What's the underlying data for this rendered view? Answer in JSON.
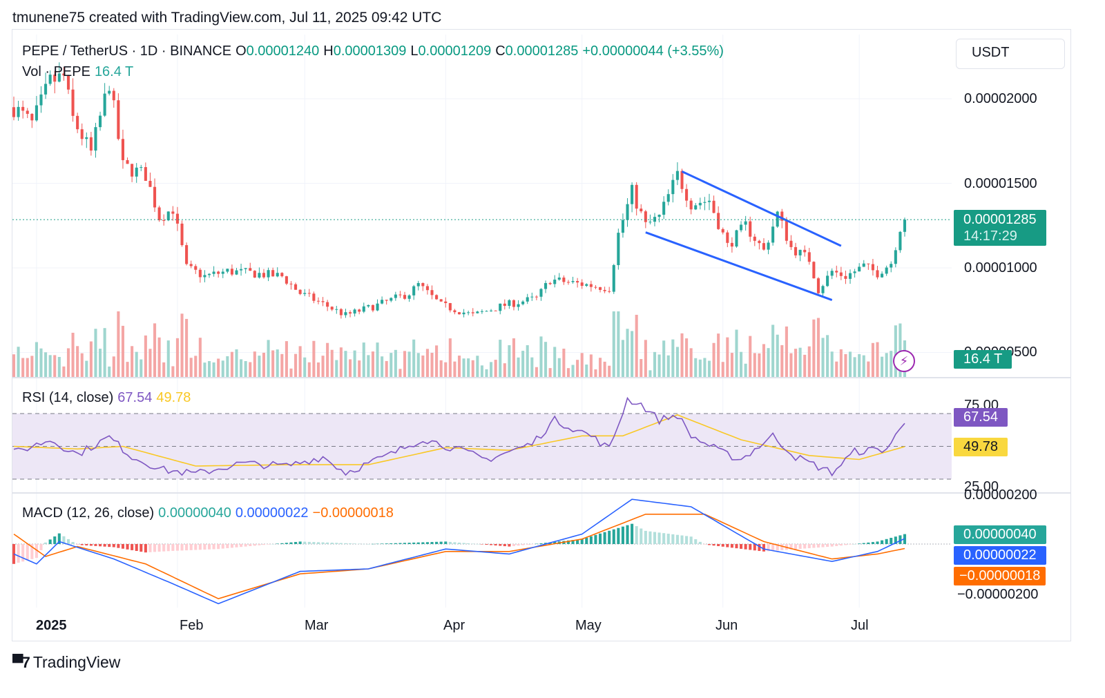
{
  "credit": "tmunene75 created with TradingView.com, Jul 11, 2025 09:42 UTC",
  "brand": "TradingView",
  "brand_mark_icon": "tradingview-logo-icon",
  "currency_button": "USDT",
  "legend": {
    "symbol": "PEPE / TetherUS · 1D · BINANCE",
    "open_label": "O",
    "open": "0.00001240",
    "high_label": "H",
    "high": "0.00001309",
    "low_label": "L",
    "low": "0.00001209",
    "close_label": "C",
    "close": "0.00001285",
    "change": "+0.00000044 (+3.55%)",
    "vol_label": "Vol · PEPE",
    "vol_value": "16.4 T",
    "rsi_label": "RSI (14, close)",
    "rsi_value": "67.54",
    "rsi_ma_value": "49.78",
    "macd_label": "MACD (12, 26, close)",
    "macd_hist": "0.00000040",
    "macd_line": "0.00000022",
    "macd_signal": "−0.00000018"
  },
  "price_tag": {
    "price": "0.00001285",
    "countdown": "14:17:29"
  },
  "volume_tag": "16.4 T",
  "rsi_tags": {
    "rsi": "67.54",
    "ma": "49.78"
  },
  "macd_tags": {
    "hist": "0.00000040",
    "line": "0.00000022",
    "signal": "−0.00000018"
  },
  "axis": {
    "price_ticks": [
      "0.00002000",
      "0.00001500",
      "0.00001000",
      "0.00000500"
    ],
    "rsi_ticks": [
      "75.00",
      "25.00"
    ],
    "macd_ticks": [
      "0.00000200",
      "−0.00000200"
    ],
    "months": [
      "2025",
      "Feb",
      "Mar",
      "Apr",
      "May",
      "Jun",
      "Jul"
    ]
  },
  "colors": {
    "up": "#26a69a",
    "down": "#ef5350",
    "vol_up": "#9fd6cf",
    "vol_down": "#f4a6a5",
    "rsi": "#7e57c2",
    "rsi_ma": "#f9c825",
    "rsi_band": "#ede7f6",
    "macd_line": "#2962ff",
    "macd_signal": "#ff6d00",
    "hist_up": "#26a69a",
    "hist_up_weak": "#b2dfdb",
    "hist_down": "#ef5350",
    "hist_down_weak": "#ffcdd2",
    "channel": "#2962ff",
    "price_tag": "#179b84"
  },
  "chart_data": {
    "type": "candlestick",
    "title": "PEPE / TetherUS · 1D · BINANCE",
    "price_ticks": [
      5e-06,
      1e-05,
      1.5e-05,
      2e-05
    ],
    "last_price": 1.285e-05,
    "x_start": "2024-12-27",
    "x_end": "2025-07-11",
    "price_anchors": [
      [
        "2024-12-27",
        1.95e-05
      ],
      [
        "2024-12-31",
        1.85e-05
      ],
      [
        "2025-01-04",
        2.1e-05
      ],
      [
        "2025-01-07",
        2.13e-05
      ],
      [
        "2025-01-09",
        1.88e-05
      ],
      [
        "2025-01-13",
        1.68e-05
      ],
      [
        "2025-01-17",
        2.1e-05
      ],
      [
        "2025-01-20",
        1.6e-05
      ],
      [
        "2025-01-25",
        1.55e-05
      ],
      [
        "2025-01-28",
        1.3e-05
      ],
      [
        "2025-01-31",
        1.35e-05
      ],
      [
        "2025-02-03",
        1e-05
      ],
      [
        "2025-02-07",
        9.5e-06
      ],
      [
        "2025-02-12",
        9.8e-06
      ],
      [
        "2025-02-17",
        9.7e-06
      ],
      [
        "2025-02-24",
        9.5e-06
      ],
      [
        "2025-02-28",
        8.5e-06
      ],
      [
        "2025-03-04",
        8e-06
      ],
      [
        "2025-03-10",
        7.2e-06
      ],
      [
        "2025-03-17",
        7.8e-06
      ],
      [
        "2025-03-24",
        8.5e-06
      ],
      [
        "2025-03-26",
        9e-06
      ],
      [
        "2025-03-31",
        7.8e-06
      ],
      [
        "2025-04-07",
        7.2e-06
      ],
      [
        "2025-04-14",
        7.8e-06
      ],
      [
        "2025-04-21",
        8.2e-06
      ],
      [
        "2025-04-24",
        9.3e-06
      ],
      [
        "2025-05-02",
        9e-06
      ],
      [
        "2025-05-07",
        8.8e-06
      ],
      [
        "2025-05-09",
        1.2e-05
      ],
      [
        "2025-05-12",
        1.45e-05
      ],
      [
        "2025-05-15",
        1.25e-05
      ],
      [
        "2025-05-18",
        1.3e-05
      ],
      [
        "2025-05-22",
        1.55e-05
      ],
      [
        "2025-05-25",
        1.38e-05
      ],
      [
        "2025-05-29",
        1.4e-05
      ],
      [
        "2025-06-02",
        1.13e-05
      ],
      [
        "2025-06-06",
        1.25e-05
      ],
      [
        "2025-06-10",
        1.1e-05
      ],
      [
        "2025-06-13",
        1.32e-05
      ],
      [
        "2025-06-16",
        1.12e-05
      ],
      [
        "2025-06-20",
        1.05e-05
      ],
      [
        "2025-06-22",
        8.7e-06
      ],
      [
        "2025-06-25",
        9.8e-06
      ],
      [
        "2025-06-28",
        9.5e-06
      ],
      [
        "2025-07-02",
        1.01e-05
      ],
      [
        "2025-07-05",
        9.7e-06
      ],
      [
        "2025-07-08",
        1.03e-05
      ],
      [
        "2025-07-10",
        1.24e-05
      ],
      [
        "2025-07-11",
        1.285e-05
      ]
    ],
    "falling_channel": {
      "upper": [
        [
          "2025-05-23",
          1.57e-05
        ],
        [
          "2025-06-27",
          1.13e-05
        ]
      ],
      "lower": [
        [
          "2025-05-15",
          1.21e-05
        ],
        [
          "2025-06-25",
          8.1e-06
        ]
      ]
    },
    "volume_last": "16.4 T",
    "rsi": {
      "ticks": [
        25,
        75
      ],
      "last": 67.54,
      "ma_last": 49.78,
      "anchors": [
        [
          "2024-12-27",
          45
        ],
        [
          "2025-01-04",
          55
        ],
        [
          "2025-01-10",
          44
        ],
        [
          "2025-01-17",
          57
        ],
        [
          "2025-01-22",
          42
        ],
        [
          "2025-01-29",
          32
        ],
        [
          "2025-02-05",
          29
        ],
        [
          "2025-02-15",
          37
        ],
        [
          "2025-02-25",
          35
        ],
        [
          "2025-03-05",
          42
        ],
        [
          "2025-03-10",
          30
        ],
        [
          "2025-03-20",
          44
        ],
        [
          "2025-03-27",
          56
        ],
        [
          "2025-04-05",
          46
        ],
        [
          "2025-04-10",
          40
        ],
        [
          "2025-04-20",
          52
        ],
        [
          "2025-04-25",
          70
        ],
        [
          "2025-05-03",
          58
        ],
        [
          "2025-05-07",
          48
        ],
        [
          "2025-05-11",
          86
        ],
        [
          "2025-05-14",
          82
        ],
        [
          "2025-05-18",
          70
        ],
        [
          "2025-05-22",
          74
        ],
        [
          "2025-05-25",
          58
        ],
        [
          "2025-06-01",
          45
        ],
        [
          "2025-06-05",
          40
        ],
        [
          "2025-06-12",
          58
        ],
        [
          "2025-06-17",
          42
        ],
        [
          "2025-06-25",
          30
        ],
        [
          "2025-06-30",
          46
        ],
        [
          "2025-07-07",
          48
        ],
        [
          "2025-07-11",
          67.54
        ]
      ],
      "ma_anchors": [
        [
          "2024-12-27",
          50
        ],
        [
          "2025-01-10",
          48
        ],
        [
          "2025-01-20",
          50
        ],
        [
          "2025-02-05",
          35
        ],
        [
          "2025-02-25",
          36
        ],
        [
          "2025-03-15",
          36
        ],
        [
          "2025-04-01",
          49
        ],
        [
          "2025-04-15",
          47
        ],
        [
          "2025-05-01",
          58
        ],
        [
          "2025-05-10",
          58
        ],
        [
          "2025-05-22",
          74
        ],
        [
          "2025-06-05",
          55
        ],
        [
          "2025-06-20",
          43
        ],
        [
          "2025-07-01",
          40
        ],
        [
          "2025-07-11",
          49.78
        ]
      ]
    },
    "macd": {
      "ticks": [
        2e-06,
        -2e-06
      ],
      "hist_last": 4e-07,
      "line_last": 2.2e-07,
      "signal_last": -1.8e-07,
      "line_anchors": [
        [
          "2024-12-27",
          -4e-07
        ],
        [
          "2025-01-01",
          -8e-07
        ],
        [
          "2025-01-06",
          1e-07
        ],
        [
          "2025-01-18",
          -6e-07
        ],
        [
          "2025-01-31",
          -1.6e-06
        ],
        [
          "2025-02-10",
          -2.4e-06
        ],
        [
          "2025-02-28",
          -1.1e-06
        ],
        [
          "2025-03-15",
          -1e-06
        ],
        [
          "2025-04-01",
          -2e-07
        ],
        [
          "2025-04-15",
          -4e-07
        ],
        [
          "2025-05-01",
          4e-07
        ],
        [
          "2025-05-12",
          1.8e-06
        ],
        [
          "2025-05-25",
          1.5e-06
        ],
        [
          "2025-06-10",
          -2e-07
        ],
        [
          "2025-06-25",
          -7e-07
        ],
        [
          "2025-07-05",
          -3e-07
        ],
        [
          "2025-07-11",
          2.2e-07
        ]
      ],
      "signal_anchors": [
        [
          "2024-12-27",
          4e-07
        ],
        [
          "2025-01-03",
          -5e-07
        ],
        [
          "2025-01-10",
          -1e-07
        ],
        [
          "2025-01-25",
          -8e-07
        ],
        [
          "2025-02-10",
          -2.2e-06
        ],
        [
          "2025-02-28",
          -1.2e-06
        ],
        [
          "2025-03-15",
          -1e-06
        ],
        [
          "2025-04-01",
          -3e-07
        ],
        [
          "2025-04-15",
          -3e-07
        ],
        [
          "2025-05-01",
          2e-07
        ],
        [
          "2025-05-15",
          1.2e-06
        ],
        [
          "2025-05-28",
          1.2e-06
        ],
        [
          "2025-06-10",
          1e-07
        ],
        [
          "2025-06-25",
          -6e-07
        ],
        [
          "2025-07-05",
          -4e-07
        ],
        [
          "2025-07-11",
          -1.8e-07
        ]
      ]
    }
  }
}
